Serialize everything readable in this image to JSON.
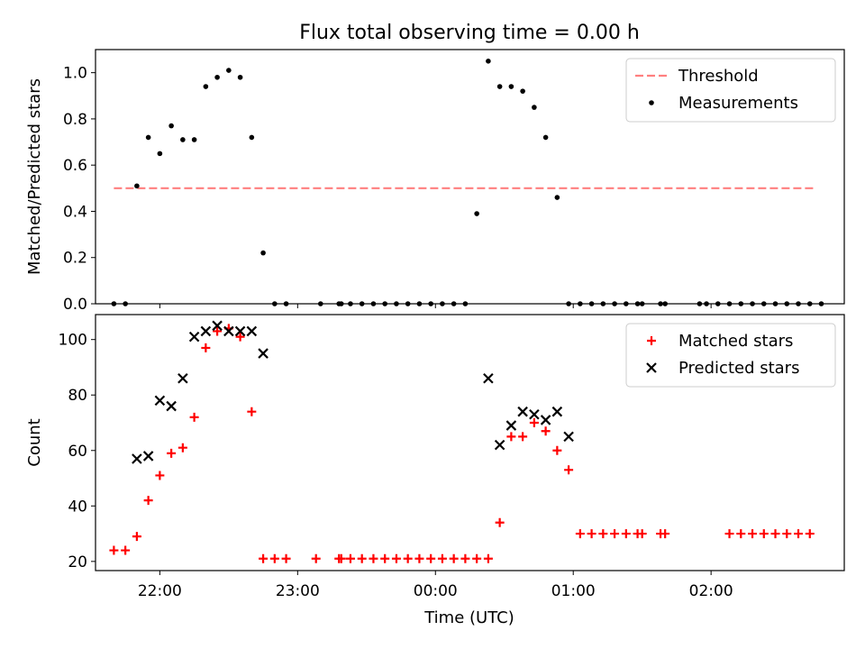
{
  "figure": {
    "title": "Flux total observing time = 0.00 h",
    "xlabel": "Time (UTC)"
  },
  "chart_data": [
    {
      "type": "scatter",
      "ylabel": "Matched/Predicted stars",
      "xlim": [
        "21:32",
        "02:58"
      ],
      "ylim": [
        0,
        1.1
      ],
      "yticks": [
        "0.0",
        "0.2",
        "0.4",
        "0.6",
        "0.8",
        "1.0"
      ],
      "grid": false,
      "legend": "top-right",
      "threshold": {
        "name": "Threshold",
        "value": 0.5,
        "x": [
          "21:40",
          "02:45"
        ],
        "color": "#ff7f7f"
      },
      "series": [
        {
          "name": "Measurements",
          "color": "#000000",
          "x": [
            "21:40",
            "21:45",
            "21:50",
            "21:55",
            "22:00",
            "22:05",
            "22:10",
            "22:15",
            "22:20",
            "22:25",
            "22:30",
            "22:35",
            "22:40",
            "22:45",
            "22:50",
            "22:55",
            "23:10",
            "23:18",
            "23:19",
            "23:23",
            "23:28",
            "23:33",
            "23:38",
            "23:43",
            "23:48",
            "23:53",
            "23:58",
            "00:03",
            "00:08",
            "00:13",
            "00:18",
            "00:23",
            "00:28",
            "00:33",
            "00:38",
            "00:43",
            "00:48",
            "00:53",
            "00:58",
            "01:03",
            "01:08",
            "01:13",
            "01:18",
            "01:23",
            "01:28",
            "01:30",
            "01:38",
            "01:40",
            "01:55",
            "01:58",
            "02:03",
            "02:08",
            "02:13",
            "02:18",
            "02:23",
            "02:28",
            "02:33",
            "02:38",
            "02:43",
            "02:48"
          ],
          "y": [
            0,
            0,
            0.51,
            0.72,
            0.65,
            0.77,
            0.71,
            0.71,
            0.94,
            0.98,
            1.01,
            0.98,
            0.72,
            0.22,
            0,
            0,
            0,
            0,
            0,
            0,
            0,
            0,
            0,
            0,
            0,
            0,
            0,
            0,
            0,
            0,
            0.39,
            1.05,
            0.94,
            0.94,
            0.92,
            0.85,
            0.72,
            0.46,
            0,
            0,
            0,
            0,
            0,
            0,
            0,
            0,
            0,
            0,
            0,
            0,
            0,
            0,
            0,
            0,
            0,
            0,
            0,
            0,
            0,
            0
          ]
        }
      ]
    },
    {
      "type": "scatter",
      "ylabel": "Count",
      "xlim": [
        "21:32",
        "02:58"
      ],
      "ylim": [
        16.7,
        109
      ],
      "yticks": [
        "20",
        "40",
        "60",
        "80",
        "100"
      ],
      "xticks": [
        "22:00",
        "23:00",
        "00:00",
        "01:00",
        "02:00"
      ],
      "grid": false,
      "legend": "top-right",
      "series": [
        {
          "name": "Matched stars",
          "color": "#ff0000",
          "marker": "+",
          "x": [
            "21:40",
            "21:45",
            "21:50",
            "21:55",
            "22:00",
            "22:05",
            "22:10",
            "22:15",
            "22:20",
            "22:25",
            "22:30",
            "22:35",
            "22:40",
            "22:45",
            "22:50",
            "22:55",
            "23:08",
            "23:18",
            "23:19",
            "23:23",
            "23:28",
            "23:33",
            "23:38",
            "23:43",
            "23:48",
            "23:53",
            "23:58",
            "00:03",
            "00:08",
            "00:13",
            "00:18",
            "00:23",
            "00:28",
            "00:33",
            "00:38",
            "00:43",
            "00:48",
            "00:53",
            "00:58",
            "01:03",
            "01:08",
            "01:13",
            "01:18",
            "01:23",
            "01:28",
            "01:30",
            "01:38",
            "01:40",
            "02:08",
            "02:13",
            "02:18",
            "02:23",
            "02:28",
            "02:33",
            "02:38",
            "02:43"
          ],
          "y": [
            24,
            24,
            29,
            42,
            51,
            59,
            61,
            72,
            97,
            103,
            104,
            101,
            74,
            21,
            21,
            21,
            21,
            21,
            21,
            21,
            21,
            21,
            21,
            21,
            21,
            21,
            21,
            21,
            21,
            21,
            21,
            21,
            34,
            65,
            65,
            70,
            67,
            60,
            53,
            30,
            30,
            30,
            30,
            30,
            30,
            30,
            30,
            30,
            30,
            30,
            30,
            30,
            30,
            30,
            30,
            30
          ]
        },
        {
          "name": "Predicted stars",
          "color": "#000000",
          "marker": "x",
          "x": [
            "21:50",
            "21:55",
            "22:00",
            "22:05",
            "22:10",
            "22:15",
            "22:20",
            "22:25",
            "22:30",
            "22:35",
            "22:40",
            "22:45",
            "00:23",
            "00:28",
            "00:33",
            "00:38",
            "00:43",
            "00:48",
            "00:53",
            "00:58"
          ],
          "y": [
            57,
            58,
            78,
            76,
            86,
            101,
            103,
            105,
            103,
            103,
            103,
            95,
            86,
            62,
            69,
            74,
            73,
            71,
            74,
            65
          ]
        }
      ]
    }
  ]
}
